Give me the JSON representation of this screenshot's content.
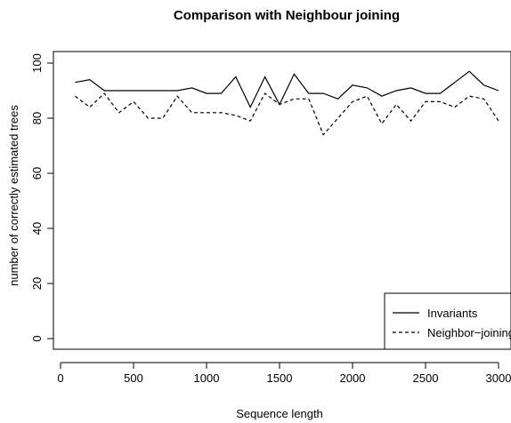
{
  "chart_data": {
    "type": "line",
    "title": "Comparison with Neighbour joining",
    "xlabel": "Sequence length",
    "ylabel": "number of correctly estimated trees",
    "xlim": [
      0,
      3000
    ],
    "ylim": [
      0,
      100
    ],
    "xticks": [
      0,
      500,
      1000,
      1500,
      2000,
      2500,
      3000
    ],
    "yticks": [
      0,
      20,
      40,
      60,
      80,
      100
    ],
    "grid": false,
    "legend_position": "bottom-right",
    "x": [
      100,
      200,
      300,
      400,
      500,
      600,
      700,
      800,
      900,
      1000,
      1100,
      1200,
      1300,
      1400,
      1500,
      1600,
      1700,
      1800,
      1900,
      2000,
      2100,
      2200,
      2300,
      2400,
      2500,
      2600,
      2700,
      2800,
      2900,
      3000
    ],
    "series": [
      {
        "name": "Invariants",
        "line_style": "solid",
        "values": [
          93,
          94,
          90,
          90,
          90,
          90,
          90,
          90,
          91,
          89,
          89,
          95,
          84,
          95,
          85,
          96,
          89,
          89,
          87,
          92,
          91,
          88,
          90,
          91,
          89,
          89,
          93,
          97,
          92,
          90
        ]
      },
      {
        "name": "Neighbor−joining",
        "line_style": "dashed",
        "values": [
          88,
          84,
          89,
          82,
          86,
          80,
          80,
          88,
          82,
          82,
          82,
          81,
          79,
          89,
          85,
          87,
          87,
          74,
          80,
          86,
          88,
          78,
          85,
          79,
          86,
          86,
          84,
          88,
          87,
          79
        ]
      }
    ]
  }
}
